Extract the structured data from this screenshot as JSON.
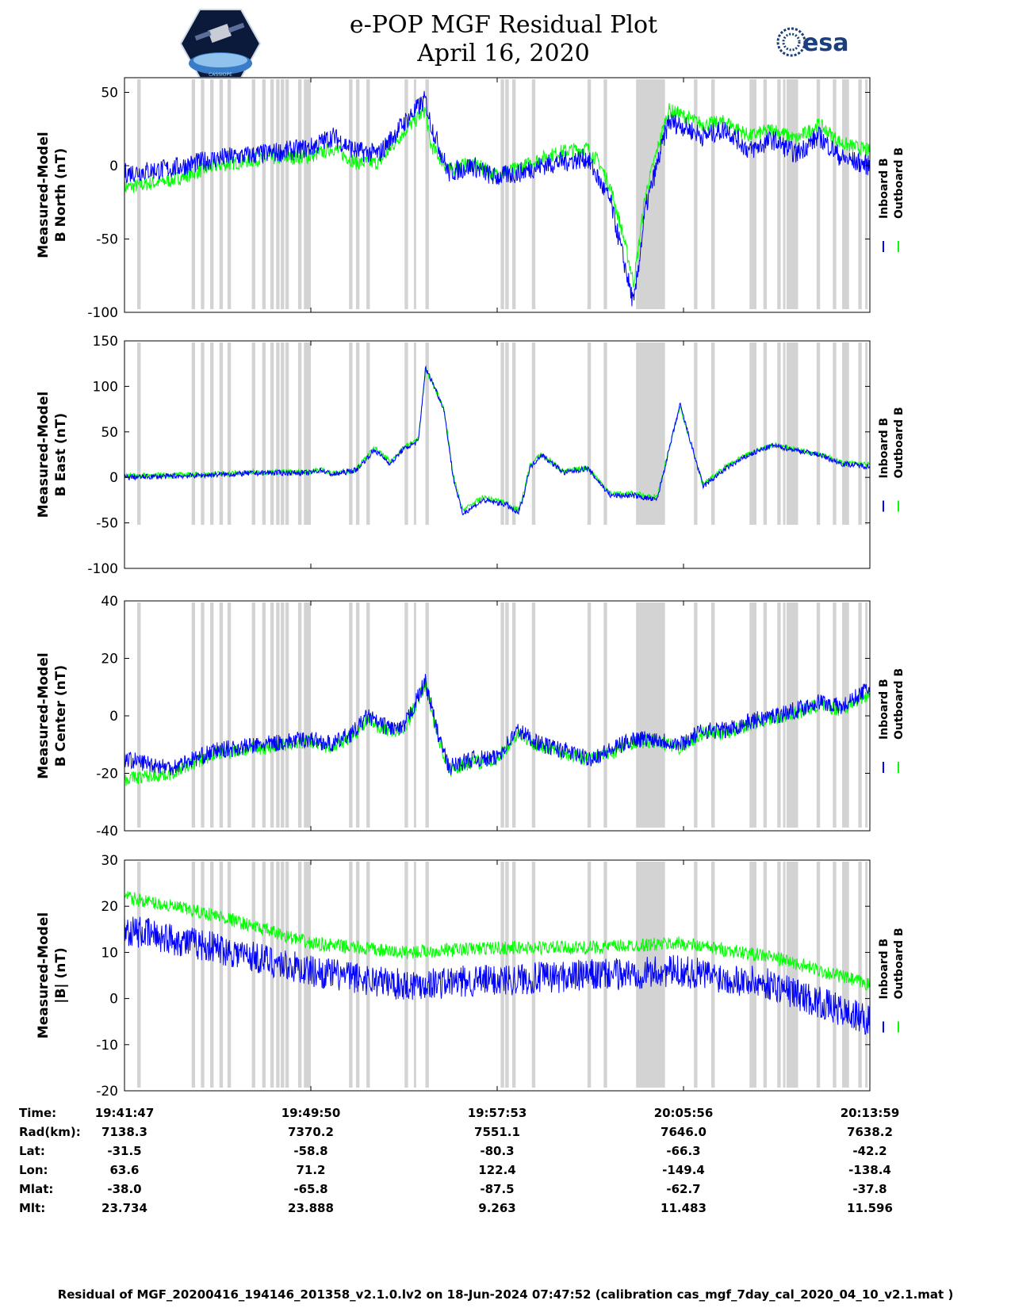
{
  "header": {
    "title_line1": "e-POP MGF Residual Plot",
    "title_line2": "April 16, 2020",
    "logo_left": "cassiope-satellite-logo",
    "logo_left_text": "CASSIOPE",
    "logo_right": "esa-logo",
    "logo_right_text": "esa"
  },
  "colors": {
    "inboard": "#0000ff",
    "outboard": "#00ff00",
    "gap_band": "#d3d3d3"
  },
  "legend": {
    "inboard": "Inboard B",
    "outboard": "Outboard B"
  },
  "chart_data": [
    {
      "type": "line",
      "ylabel": [
        "Measured-Model",
        "B North (nT)"
      ],
      "ylim": [
        -100,
        60
      ],
      "yticks": [
        50,
        0,
        -50,
        -100
      ],
      "yticklabels": [
        "50",
        "0",
        "-50",
        "-100"
      ],
      "x_minutes_span": [
        0,
        32.2
      ],
      "series": [
        {
          "name": "Inboard B",
          "trend_t": [
            0,
            2,
            4,
            6,
            8,
            9,
            10,
            11,
            12,
            13,
            13.2,
            14,
            15,
            16,
            17,
            18,
            19,
            20,
            20.5,
            21,
            21.5,
            22,
            22.5,
            23,
            23.5,
            24,
            25,
            26,
            27,
            28,
            29,
            30,
            31,
            32.2
          ],
          "trend_v": [
            -5,
            -2,
            5,
            8,
            12,
            20,
            10,
            8,
            28,
            45,
            30,
            -5,
            0,
            -8,
            -5,
            0,
            3,
            5,
            -10,
            -25,
            -60,
            -95,
            -30,
            0,
            30,
            28,
            20,
            25,
            10,
            18,
            8,
            20,
            5,
            0
          ]
        },
        {
          "name": "Outboard B",
          "trend_t": [
            0,
            2,
            4,
            6,
            8,
            9,
            10,
            11,
            12,
            13,
            13.2,
            14,
            15,
            16,
            17,
            18,
            19,
            20,
            20.5,
            21,
            21.5,
            22,
            22.5,
            23,
            23.5,
            24,
            25,
            26,
            27,
            28,
            29,
            30,
            31,
            32.2
          ],
          "trend_v": [
            -15,
            -10,
            0,
            5,
            6,
            12,
            2,
            2,
            22,
            38,
            15,
            -3,
            2,
            -6,
            -2,
            5,
            10,
            12,
            2,
            -15,
            -45,
            -80,
            -20,
            10,
            38,
            35,
            28,
            30,
            20,
            25,
            18,
            28,
            15,
            10
          ]
        }
      ],
      "noise": {
        "Inboard B": 7,
        "Outboard B": 5
      }
    },
    {
      "type": "line",
      "ylabel": [
        "Measured-Model",
        "B East (nT)"
      ],
      "ylim": [
        -100,
        150
      ],
      "yticks": [
        150,
        100,
        50,
        0,
        -50,
        -100
      ],
      "yticklabels": [
        "150",
        "100",
        "50",
        "0",
        "-50",
        "-100"
      ],
      "x_minutes_span": [
        0,
        32.2
      ],
      "series": [
        {
          "name": "Inboard B",
          "trend_t": [
            0,
            3,
            6,
            8,
            8.5,
            9,
            10,
            10.8,
            11.5,
            12,
            12.7,
            13,
            13.3,
            13.8,
            14.2,
            14.6,
            15.5,
            16.5,
            17,
            17.2,
            17.5,
            18,
            19,
            20,
            21,
            22,
            23,
            24,
            25,
            26,
            27,
            28,
            29,
            30,
            31,
            32.2
          ],
          "trend_v": [
            0,
            2,
            5,
            5,
            8,
            3,
            8,
            30,
            15,
            30,
            40,
            120,
            105,
            75,
            0,
            -40,
            -25,
            -30,
            -40,
            -25,
            10,
            25,
            5,
            10,
            -20,
            -20,
            -25,
            80,
            -10,
            10,
            25,
            35,
            30,
            25,
            15,
            12
          ]
        },
        {
          "name": "Outboard B",
          "trend_t": [
            0,
            3,
            6,
            8,
            8.5,
            9,
            10,
            10.8,
            11.5,
            12,
            12.7,
            13,
            13.3,
            13.8,
            14.2,
            14.6,
            15.5,
            16.5,
            17,
            17.2,
            17.5,
            18,
            19,
            20,
            21,
            22,
            23,
            24,
            25,
            26,
            27,
            28,
            29,
            30,
            31,
            32.2
          ],
          "trend_v": [
            2,
            3,
            6,
            6,
            9,
            4,
            9,
            32,
            17,
            32,
            42,
            118,
            104,
            76,
            2,
            -36,
            -22,
            -28,
            -36,
            -22,
            12,
            26,
            6,
            11,
            -18,
            -18,
            -22,
            78,
            -8,
            12,
            26,
            36,
            31,
            26,
            16,
            14
          ]
        }
      ],
      "noise": {
        "Inboard B": 3,
        "Outboard B": 3
      }
    },
    {
      "type": "line",
      "ylabel": [
        "Measured-Model",
        "B Center (nT)"
      ],
      "ylim": [
        -40,
        40
      ],
      "yticks": [
        40,
        20,
        0,
        -20,
        -40
      ],
      "yticklabels": [
        "40",
        "20",
        "0",
        "-20",
        "-40"
      ],
      "x_minutes_span": [
        0,
        32.2
      ],
      "series": [
        {
          "name": "Inboard B",
          "trend_t": [
            0,
            2,
            4,
            6,
            8,
            9,
            10,
            10.5,
            11,
            12,
            13,
            13.5,
            14,
            15,
            16,
            17,
            18,
            19,
            20,
            21,
            22,
            23,
            24,
            25,
            26,
            27,
            28,
            29,
            30,
            31,
            32.2
          ],
          "trend_v": [
            -15,
            -18,
            -12,
            -10,
            -8,
            -10,
            -5,
            0,
            -3,
            -5,
            12,
            -5,
            -18,
            -15,
            -15,
            -5,
            -10,
            -12,
            -15,
            -12,
            -8,
            -8,
            -10,
            -5,
            -5,
            -2,
            0,
            2,
            5,
            3,
            10
          ]
        },
        {
          "name": "Outboard B",
          "trend_t": [
            0,
            2,
            4,
            6,
            8,
            9,
            10,
            10.5,
            11,
            12,
            13,
            13.5,
            14,
            15,
            16,
            17,
            18,
            19,
            20,
            21,
            22,
            23,
            24,
            25,
            26,
            27,
            28,
            29,
            30,
            31,
            32.2
          ],
          "trend_v": [
            -22,
            -20,
            -13,
            -11,
            -9,
            -11,
            -6,
            -1,
            -4,
            -6,
            11,
            -6,
            -19,
            -16,
            -16,
            -6,
            -11,
            -13,
            -15,
            -13,
            -9,
            -9,
            -11,
            -6,
            -6,
            -3,
            -1,
            1,
            4,
            2,
            8
          ]
        }
      ],
      "noise": {
        "Inboard B": 3,
        "Outboard B": 2.5
      }
    },
    {
      "type": "line",
      "ylabel": [
        "Measured-Model",
        "|B| (nT)"
      ],
      "ylim": [
        -20,
        30
      ],
      "yticks": [
        30,
        20,
        10,
        0,
        -10,
        -20
      ],
      "yticklabels": [
        "30",
        "20",
        "10",
        "0",
        "-10",
        "-20"
      ],
      "x_minutes_span": [
        0,
        32.2
      ],
      "series": [
        {
          "name": "Inboard B",
          "trend_t": [
            0,
            4,
            8,
            12,
            16,
            20,
            24,
            28,
            32.2
          ],
          "trend_v": [
            15,
            11,
            6,
            3,
            4,
            5,
            6,
            3,
            -5
          ]
        },
        {
          "name": "Outboard B",
          "trend_t": [
            0,
            4,
            8,
            12,
            16,
            20,
            24,
            28,
            32.2
          ],
          "trend_v": [
            22,
            18,
            12,
            10,
            11,
            11,
            12,
            9,
            3
          ]
        }
      ],
      "noise": {
        "Inboard B": 3.5,
        "Outboard B": 1.5
      }
    }
  ],
  "gap_bands_minutes": [
    [
      0.55,
      0.7
    ],
    [
      2.9,
      3.05
    ],
    [
      3.3,
      3.45
    ],
    [
      3.7,
      3.85
    ],
    [
      4.1,
      4.25
    ],
    [
      4.45,
      4.6
    ],
    [
      5.5,
      5.65
    ],
    [
      5.95,
      6.1
    ],
    [
      6.3,
      6.45
    ],
    [
      6.55,
      6.7
    ],
    [
      6.75,
      6.9
    ],
    [
      6.95,
      7.1
    ],
    [
      7.5,
      7.65
    ],
    [
      7.75,
      8.05
    ],
    [
      9.7,
      9.85
    ],
    [
      10.0,
      10.15
    ],
    [
      10.45,
      10.6
    ],
    [
      12.1,
      12.25
    ],
    [
      13.0,
      13.15
    ],
    [
      12.5,
      12.6
    ],
    [
      16.25,
      16.4
    ],
    [
      16.45,
      16.6
    ],
    [
      16.75,
      16.9
    ],
    [
      17.6,
      17.75
    ],
    [
      20.0,
      20.15
    ],
    [
      20.7,
      20.85
    ],
    [
      22.1,
      23.35
    ],
    [
      24.6,
      24.75
    ],
    [
      25.35,
      25.5
    ],
    [
      27.0,
      27.3
    ],
    [
      27.6,
      27.75
    ],
    [
      28.2,
      28.35
    ],
    [
      28.45,
      28.5
    ],
    [
      28.6,
      29.1
    ],
    [
      29.9,
      30.05
    ],
    [
      30.6,
      30.75
    ],
    [
      31.0,
      31.3
    ],
    [
      31.7,
      31.85
    ],
    [
      32.0,
      32.1
    ]
  ],
  "x_axis": {
    "ticks_minutes": [
      0,
      8.05,
      16.1,
      24.15,
      32.2
    ],
    "labels": {
      "Time:": [
        "19:41:47",
        "19:49:50",
        "19:57:53",
        "20:05:56",
        "20:13:59"
      ],
      "Rad(km):": [
        "7138.3",
        "7370.2",
        "7551.1",
        "7646.0",
        "7638.2"
      ],
      "Lat:": [
        "-31.5",
        "-58.8",
        "-80.3",
        "-66.3",
        "-42.2"
      ],
      "Lon:": [
        "63.6",
        "71.2",
        "122.4",
        "-149.4",
        "-138.4"
      ],
      "Mlat:": [
        "-38.0",
        "-65.8",
        "-87.5",
        "-62.7",
        "-37.8"
      ],
      "Mlt:": [
        "23.734",
        "23.888",
        "9.263",
        "11.483",
        "11.596"
      ]
    }
  },
  "footer": "Residual of MGF_20200416_194146_201358_v2.1.0.lv2 on 18-Jun-2024 07:47:52 (calibration cas_mgf_7day_cal_2020_04_10_v2.1.mat )"
}
